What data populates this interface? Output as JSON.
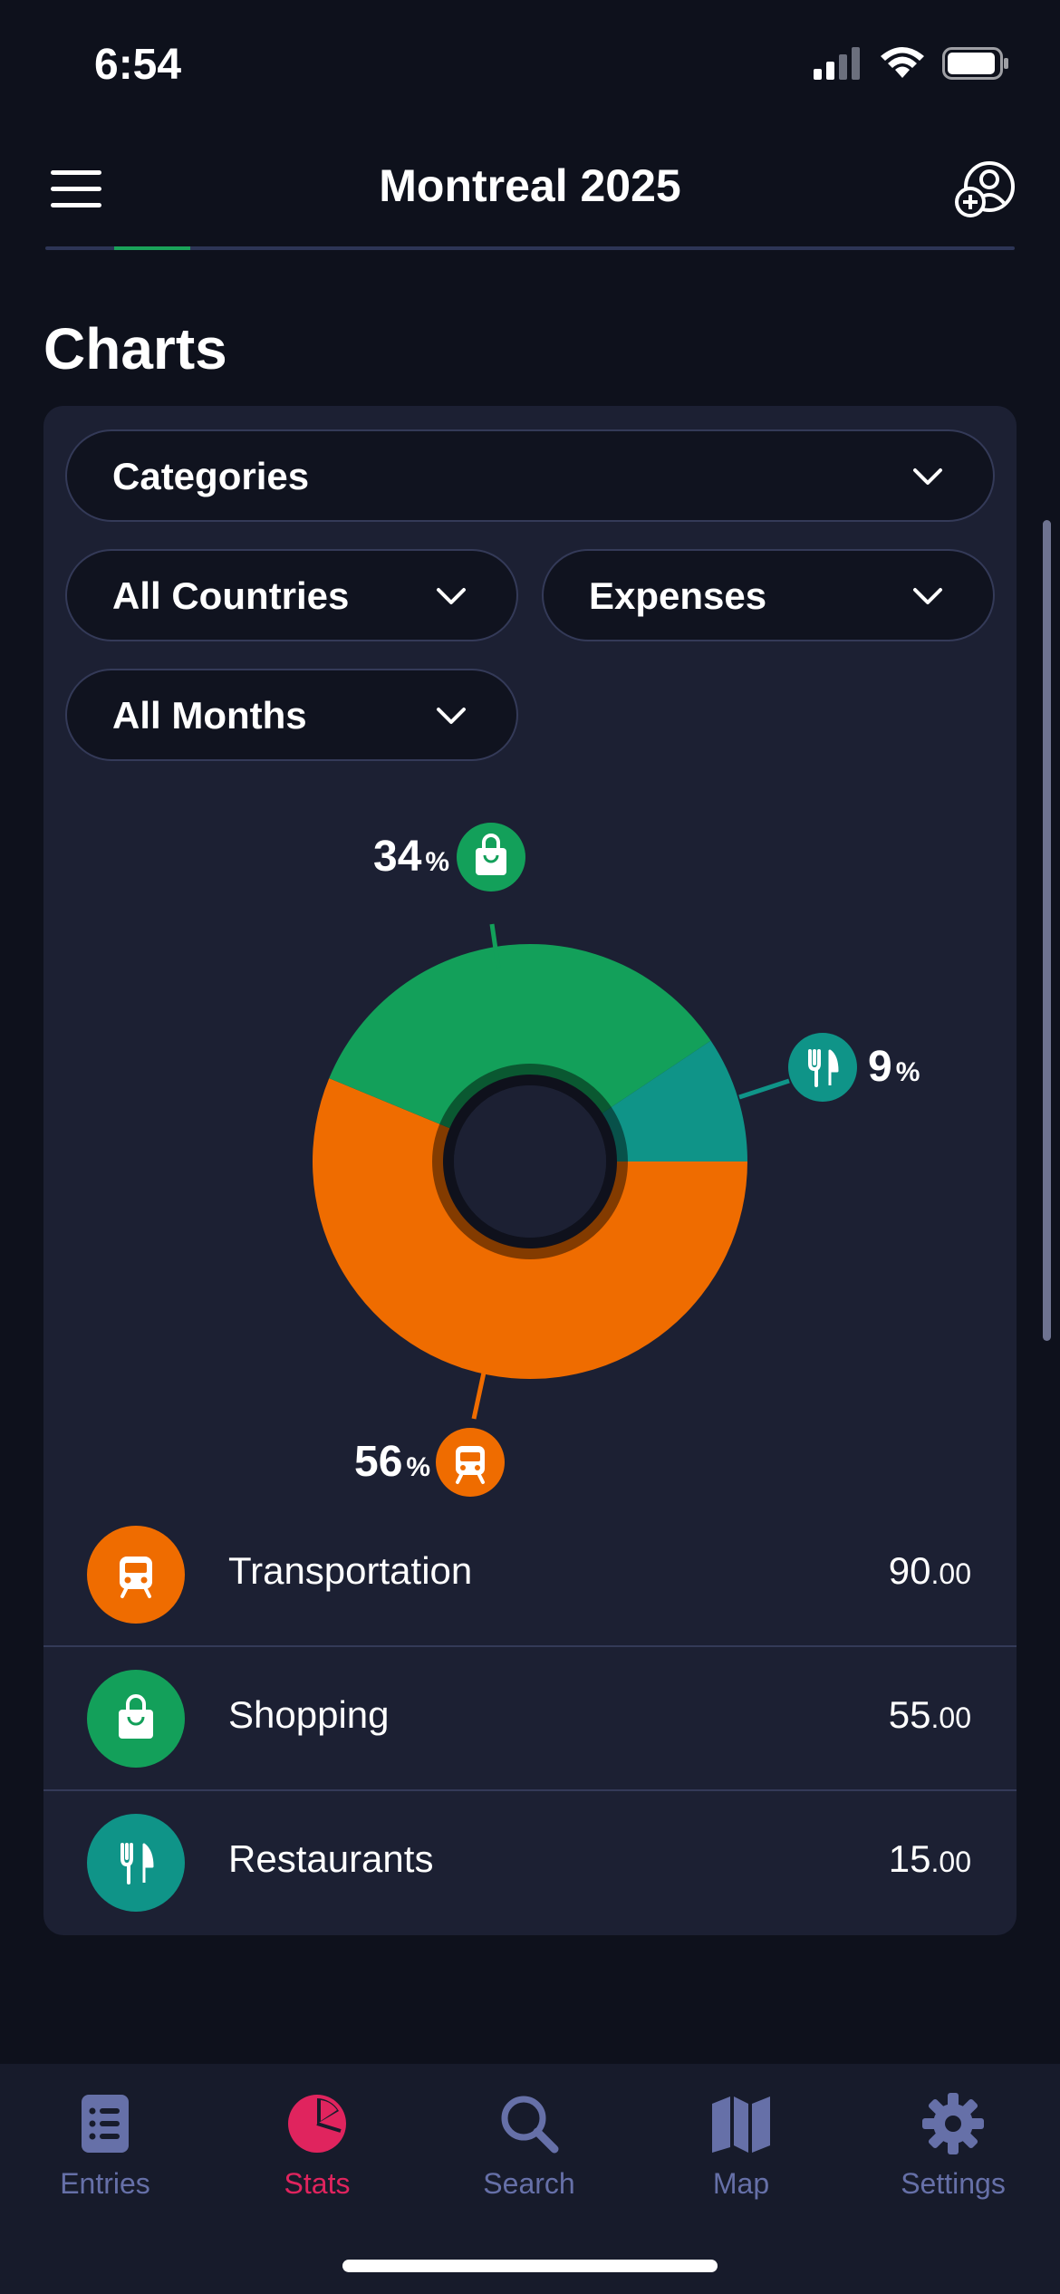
{
  "status_bar": {
    "time": "6:54"
  },
  "header": {
    "title": "Montreal 2025"
  },
  "section": {
    "title": "Charts"
  },
  "filters": {
    "group_by": "Categories",
    "country": "All Countries",
    "type": "Expenses",
    "month": "All Months"
  },
  "chart_data": {
    "type": "pie",
    "style": "donut",
    "slices": [
      {
        "label": "Transportation",
        "percent": 56,
        "value": 90.0,
        "color": "#ef6c00",
        "icon": "bus-icon"
      },
      {
        "label": "Shopping",
        "percent": 34,
        "value": 55.0,
        "color": "#13a05a",
        "icon": "shopping-bag-icon"
      },
      {
        "label": "Restaurants",
        "percent": 9,
        "value": 15.0,
        "color": "#0f9488",
        "icon": "fork-knife-icon"
      }
    ],
    "percent_labels": {
      "transport": "56",
      "shopping": "34",
      "restaurants": "9",
      "unit": "%"
    }
  },
  "categories": [
    {
      "name": "Transportation",
      "amount_int": "90",
      "amount_dec": ".00",
      "icon": "bus-icon",
      "color": "#ef6c00"
    },
    {
      "name": "Shopping",
      "amount_int": "55",
      "amount_dec": ".00",
      "icon": "shopping-bag-icon",
      "color": "#13a05a"
    },
    {
      "name": "Restaurants",
      "amount_int": "15",
      "amount_dec": ".00",
      "icon": "fork-knife-icon",
      "color": "#0f9488"
    }
  ],
  "tabs": [
    {
      "label": "Entries",
      "icon": "entries-icon",
      "active": false
    },
    {
      "label": "Stats",
      "icon": "pie-chart-icon",
      "active": true
    },
    {
      "label": "Search",
      "icon": "search-icon",
      "active": false
    },
    {
      "label": "Map",
      "icon": "map-icon",
      "active": false
    },
    {
      "label": "Settings",
      "icon": "gear-icon",
      "active": false
    }
  ],
  "colors": {
    "background": "#0e111c",
    "card": "#1c2033",
    "accent_active": "#e0245e",
    "tab_inactive": "#6670a8"
  }
}
